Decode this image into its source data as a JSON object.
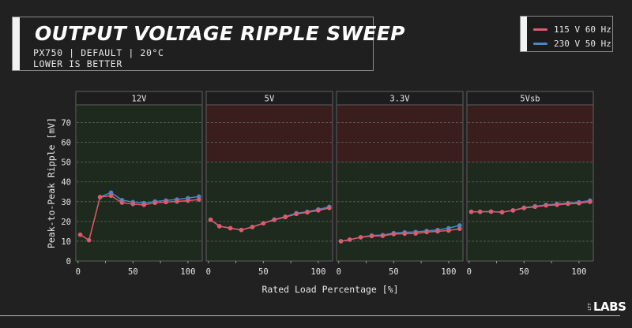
{
  "header": {
    "title": "OUTPUT VOLTAGE RIPPLE SWEEP",
    "subtitle_line1": "PX750 | DEFAULT | 20°C",
    "subtitle_line2": "LOWER IS BETTER"
  },
  "legend": {
    "items": [
      {
        "label": "115 V 60 Hz",
        "color": "#e05a6e"
      },
      {
        "label": "230 V 50 Hz",
        "color": "#4a86c5"
      }
    ]
  },
  "logo": {
    "small": "LTT",
    "main": "LABS"
  },
  "colors": {
    "pass_zone": "#1d2a1d",
    "fail_zone": "#3a1e1e",
    "grid": "#6b7a6b",
    "frame": "#5e5e5e"
  },
  "chart_data": {
    "type": "line",
    "title": "OUTPUT VOLTAGE RIPPLE SWEEP",
    "xlabel": "Rated Load Percentage [%]",
    "ylabel": "Peak-to-Peak Ripple [mV]",
    "xlim": [
      -2,
      113
    ],
    "ylim": [
      0,
      79
    ],
    "xticks": [
      0,
      50,
      100
    ],
    "xtick_minor": [
      0,
      25,
      50,
      75,
      100
    ],
    "yticks": [
      0,
      10,
      20,
      30,
      40,
      50,
      60,
      70
    ],
    "grid": true,
    "legend_position": "top-right",
    "x": [
      2,
      10,
      20,
      30,
      40,
      50,
      60,
      70,
      80,
      90,
      100,
      110
    ],
    "panels": [
      {
        "name": "12V",
        "limit": 120,
        "series": [
          {
            "name": "115 V 60 Hz",
            "values": [
              13.3,
              10.5,
              32.3,
              33.0,
              29.5,
              28.8,
              28.4,
              29.4,
              29.8,
              30.1,
              30.5,
              31.1
            ]
          },
          {
            "name": "230 V 50 Hz",
            "values": [
              null,
              null,
              32.4,
              34.6,
              30.8,
              29.8,
              29.3,
              30.1,
              30.6,
              31.1,
              31.8,
              32.6
            ]
          }
        ]
      },
      {
        "name": "5V",
        "limit": 50,
        "series": [
          {
            "name": "115 V 60 Hz",
            "values": [
              20.9,
              17.6,
              16.6,
              15.7,
              17.2,
              19.1,
              20.8,
              22.2,
              23.8,
              24.6,
              25.6,
              26.8
            ]
          },
          {
            "name": "230 V 50 Hz",
            "values": [
              20.9,
              17.6,
              16.6,
              15.7,
              17.2,
              19.1,
              21.0,
              22.4,
              24.2,
              24.9,
              26.1,
              27.4
            ]
          }
        ]
      },
      {
        "name": "3.3V",
        "limit": 50,
        "series": [
          {
            "name": "115 V 60 Hz",
            "values": [
              10.0,
              10.8,
              12.0,
              12.6,
              12.7,
              13.6,
              13.8,
              13.9,
              14.6,
              15.0,
              15.4,
              16.3
            ]
          },
          {
            "name": "230 V 50 Hz",
            "values": [
              10.0,
              10.8,
              12.0,
              12.9,
              13.1,
              14.1,
              14.5,
              14.7,
              15.2,
              15.7,
              16.6,
              18.0
            ]
          }
        ]
      },
      {
        "name": "5Vsb",
        "limit": 50,
        "series": [
          {
            "name": "115 V 60 Hz",
            "values": [
              24.9,
              24.9,
              25.0,
              24.7,
              25.6,
              26.8,
              27.4,
              28.1,
              28.4,
              28.9,
              29.2,
              29.9
            ]
          },
          {
            "name": "230 V 50 Hz",
            "values": [
              24.9,
              24.9,
              25.0,
              24.7,
              25.6,
              27.0,
              27.7,
              28.4,
              28.9,
              29.3,
              29.7,
              30.6
            ]
          }
        ]
      }
    ]
  }
}
